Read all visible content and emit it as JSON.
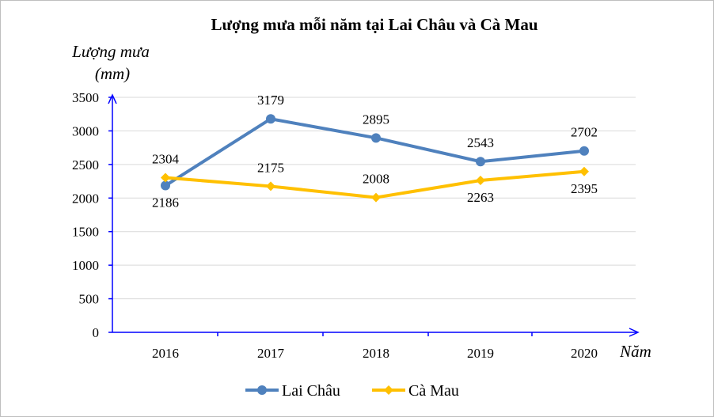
{
  "chart_data": {
    "type": "line",
    "title": "Lượng mưa mỗi năm tại Lai Châu và Cà Mau",
    "ylabel_line1": "Lượng mưa",
    "ylabel_line2": "(mm)",
    "xlabel": "Năm",
    "categories": [
      "2016",
      "2017",
      "2018",
      "2019",
      "2020"
    ],
    "ylim": [
      0,
      3500
    ],
    "yticks": [
      0,
      500,
      1000,
      1500,
      2000,
      2500,
      3000,
      3500
    ],
    "grid": true,
    "legend_placement": "bottom",
    "axis_color": "#0000FF",
    "series": [
      {
        "name": "Lai Châu",
        "values": [
          2186,
          3179,
          2895,
          2543,
          2702
        ],
        "color": "#4F81BD",
        "marker": "circle"
      },
      {
        "name": "Cà Mau",
        "values": [
          2304,
          2175,
          2008,
          2263,
          2395
        ],
        "color": "#FFC000",
        "marker": "diamond"
      }
    ]
  }
}
